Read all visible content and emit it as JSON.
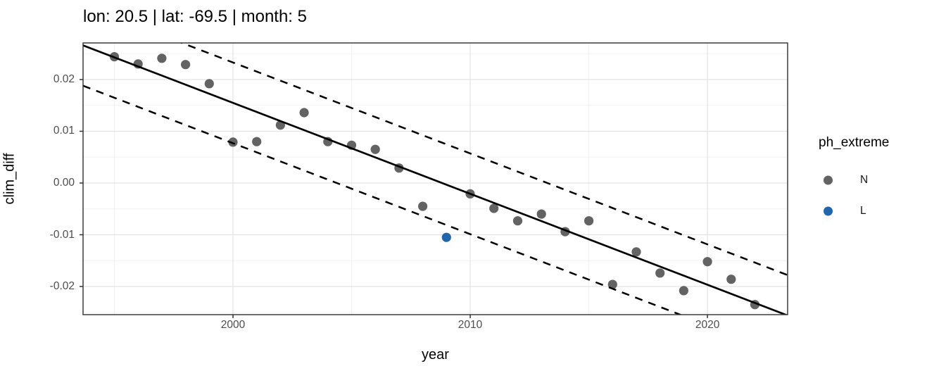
{
  "chart_data": {
    "type": "scatter",
    "title": "lon: 20.5 | lat: -69.5 | month: 5",
    "xlabel": "year",
    "ylabel": "clim_diff",
    "grid": true,
    "x_axis": {
      "range": [
        1993.68,
        2023.38
      ],
      "ticks": [
        2000,
        2010,
        2020
      ],
      "tick_labels": [
        "2000",
        "2010",
        "2020"
      ],
      "minor_ticks": [
        1995,
        2005,
        2015
      ]
    },
    "y_axis": {
      "range": [
        -0.02544,
        0.02707
      ],
      "ticks": [
        0.02,
        0.01,
        0.0,
        -0.01,
        -0.02
      ],
      "tick_labels": [
        "0.02",
        "0.01",
        "0.00",
        "-0.01",
        "-0.02"
      ],
      "minor_ticks": [
        0.025,
        0.015,
        0.005,
        -0.005,
        -0.015,
        -0.025
      ]
    },
    "series": [
      {
        "name": "N",
        "color": "#636363",
        "points": [
          [
            1995,
            0.0244
          ],
          [
            1996,
            0.023
          ],
          [
            1997,
            0.0241
          ],
          [
            1998,
            0.0229
          ],
          [
            1999,
            0.0192
          ],
          [
            2000,
            0.0079
          ],
          [
            2001,
            0.008
          ],
          [
            2002,
            0.0112
          ],
          [
            2003,
            0.0136
          ],
          [
            2004,
            0.008
          ],
          [
            2005,
            0.0073
          ],
          [
            2006,
            0.0065
          ],
          [
            2007,
            0.0029
          ],
          [
            2008,
            -0.0045
          ],
          [
            2010,
            -0.0021
          ],
          [
            2011,
            -0.0049
          ],
          [
            2012,
            -0.0073
          ],
          [
            2013,
            -0.006
          ],
          [
            2014,
            -0.0094
          ],
          [
            2015,
            -0.0073
          ],
          [
            2016,
            -0.0196
          ],
          [
            2017,
            -0.0133
          ],
          [
            2018,
            -0.0174
          ],
          [
            2019,
            -0.0208
          ],
          [
            2020,
            -0.0152
          ],
          [
            2021,
            -0.0186
          ],
          [
            2022,
            -0.0235
          ]
        ]
      },
      {
        "name": "L",
        "color": "#2166AC",
        "points": [
          [
            2009,
            -0.0105
          ]
        ]
      }
    ],
    "fit_line": {
      "style": "solid",
      "color": "#000000",
      "endpoints": [
        [
          1993.68,
          0.0266
        ],
        [
          2023.38,
          -0.0256
        ]
      ]
    },
    "interval_lines": {
      "style": "dashed",
      "color": "#000000",
      "offset": 0.0078
    },
    "legend": {
      "title": "ph_extreme",
      "position": "right",
      "entries": [
        {
          "label": "N",
          "color": "#636363"
        },
        {
          "label": "L",
          "color": "#2166AC"
        }
      ]
    }
  }
}
